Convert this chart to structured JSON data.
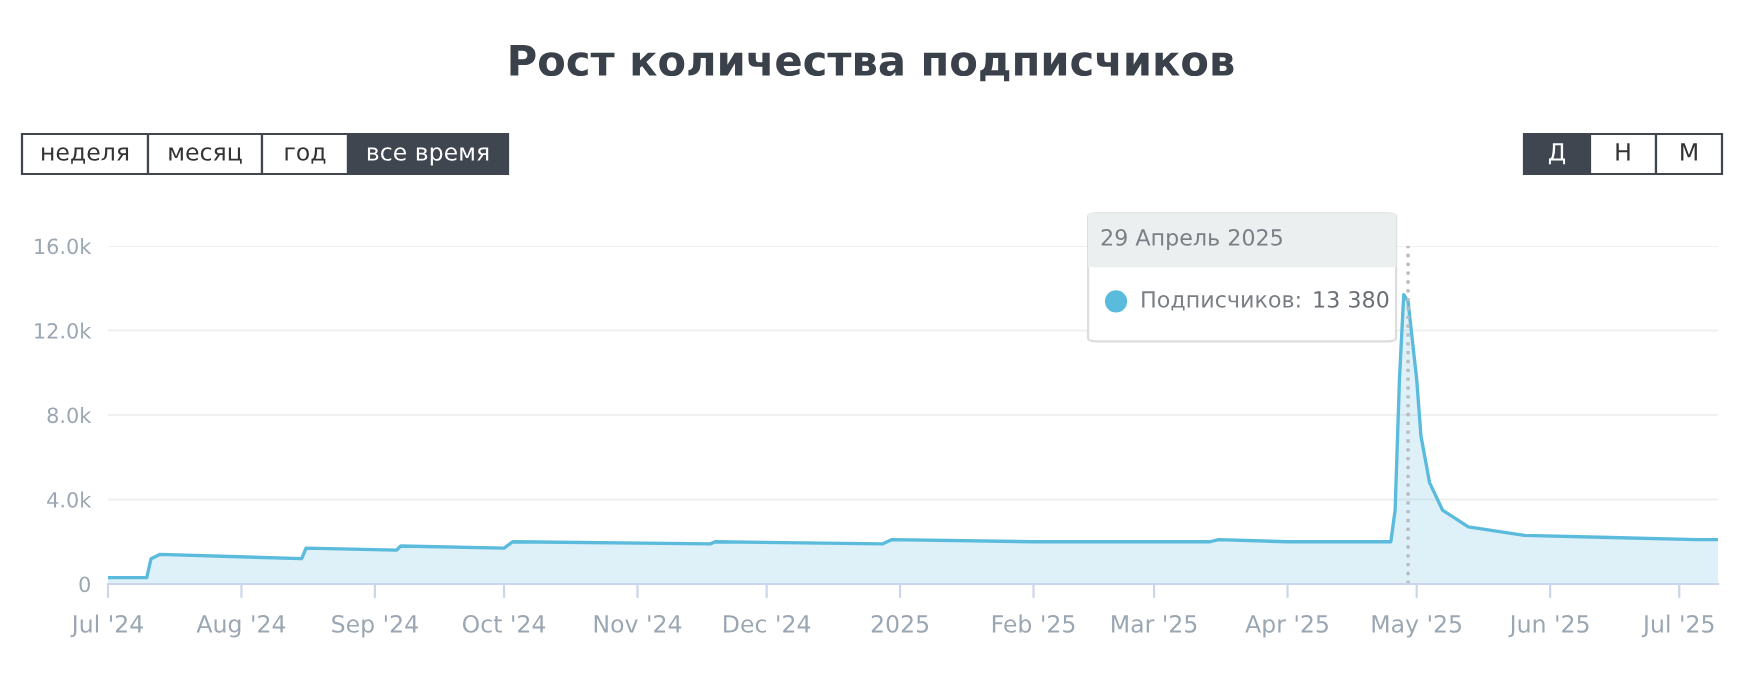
{
  "chart_data": {
    "type": "area",
    "title": "Рост количества подписчиков",
    "x": [
      "2024-07-01",
      "2024-07-10",
      "2024-07-11",
      "2024-07-13",
      "2024-08-15",
      "2024-08-16",
      "2024-09-06",
      "2024-09-07",
      "2024-10-01",
      "2024-10-03",
      "2024-11-18",
      "2024-11-19",
      "2024-12-28",
      "2024-12-30",
      "2025-02-01",
      "2025-03-14",
      "2025-03-16",
      "2025-04-01",
      "2025-04-25",
      "2025-04-26",
      "2025-04-27",
      "2025-04-28",
      "2025-04-29",
      "2025-05-01",
      "2025-05-02",
      "2025-05-04",
      "2025-05-07",
      "2025-05-13",
      "2025-05-26",
      "2025-06-15",
      "2025-07-05",
      "2025-07-10"
    ],
    "series": [
      {
        "name": "Подписчиков:",
        "color": "#5bbbdc",
        "values": [
          300,
          300,
          1200,
          1400,
          1200,
          1700,
          1600,
          1800,
          1700,
          2000,
          1900,
          2000,
          1900,
          2100,
          2000,
          2000,
          2100,
          2000,
          2000,
          3500,
          9700,
          13700,
          13380,
          9700,
          7000,
          4800,
          3500,
          2700,
          2300,
          2200,
          2100,
          2100
        ]
      }
    ],
    "xlim": [
      "2024-07-01",
      "2025-07-10"
    ],
    "xticks": [
      {
        "value": "2024-07-01",
        "label": "Jul '24"
      },
      {
        "value": "2024-08-01",
        "label": "Aug '24"
      },
      {
        "value": "2024-09-01",
        "label": "Sep '24"
      },
      {
        "value": "2024-10-01",
        "label": "Oct '24"
      },
      {
        "value": "2024-11-01",
        "label": "Nov '24"
      },
      {
        "value": "2024-12-01",
        "label": "Dec '24"
      },
      {
        "value": "2025-01-01",
        "label": "2025"
      },
      {
        "value": "2025-02-01",
        "label": "Feb '25"
      },
      {
        "value": "2025-03-01",
        "label": "Mar '25"
      },
      {
        "value": "2025-04-01",
        "label": "Apr '25"
      },
      {
        "value": "2025-05-01",
        "label": "May '25"
      },
      {
        "value": "2025-06-01",
        "label": "Jun '25"
      },
      {
        "value": "2025-07-01",
        "label": "Jul '25"
      }
    ],
    "ylim": [
      0,
      16000
    ],
    "yticks": [
      0,
      {
        "value": 4000,
        "label": "4.0k"
      },
      {
        "value": 8000,
        "label": "8.0k"
      },
      {
        "value": 12000,
        "label": "12.0k"
      },
      {
        "value": 16000,
        "label": "16.0k"
      }
    ],
    "grid": "y",
    "ref_lines": [
      {
        "axis": "x",
        "value": "2025-04-29",
        "label": null,
        "color": "#bbbbbb",
        "line_style": "dotted"
      }
    ],
    "annotations": [
      "неделя",
      "месяц",
      "год",
      "все время",
      "Д",
      "Н",
      "М",
      "29 Апрель 2025",
      {
        "text": "13 380",
        "x": "2025-04-29",
        "y": 13380
      }
    ],
    "legend": "top"
  }
}
